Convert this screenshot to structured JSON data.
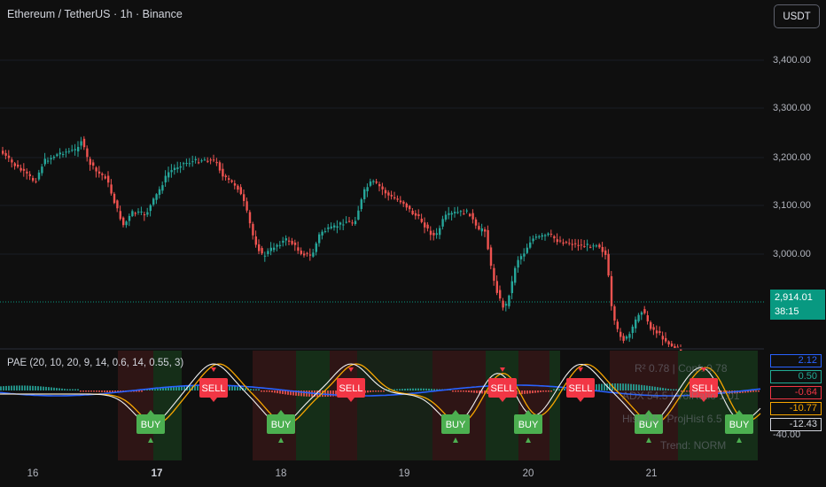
{
  "header": {
    "title": "Ethereum / TetherUS · 1h · Binance",
    "currency_button": "USDT"
  },
  "indicator": {
    "label": "PAE (20, 10, 20, 9, 14, 0.6, 14, 0.55, 3)"
  },
  "price_axis": {
    "ticks": [
      "3,400.00",
      "3,300.00",
      "3,200.00",
      "3,100.00",
      "3,000.00"
    ]
  },
  "last_price": {
    "value": "2,914.01",
    "countdown": "38:15"
  },
  "indicator_axis": {
    "values": [
      {
        "text": "2.12",
        "color": "#2962ff"
      },
      {
        "text": "0.50",
        "color": "#22ab94"
      },
      {
        "text": "-0.64",
        "color": "#f23645"
      },
      {
        "text": "-10.77",
        "color": "#f7a600"
      },
      {
        "text": "-12.43",
        "color": "#d1d4dc"
      }
    ],
    "tick": "-40.00"
  },
  "time_axis": {
    "ticks": [
      "16",
      "17",
      "18",
      "19",
      "20",
      "21"
    ]
  },
  "overlay_stats": {
    "line1": "R² 0.78 | Conf: 0.78",
    "line2": "ADX 54.5 | VolRatio 1.01",
    "line3": "Hist 3.5 | ProjHist 6.5",
    "line4": "Trend: NORM"
  },
  "signals": {
    "sell_label": "SELL",
    "buy_label": "BUY",
    "sell_x": [
      241,
      396,
      567,
      655,
      794
    ],
    "buy_x": [
      170,
      317,
      514,
      596,
      732,
      834
    ]
  },
  "colors": {
    "up": "#26a69a",
    "down": "#ef5350",
    "sell": "#f23645",
    "buy": "#4caf50",
    "pae_blue": "#2962ff",
    "pae_orange": "#f7a600",
    "pae_white": "#f0f0f0",
    "price_line": "#089981"
  }
}
